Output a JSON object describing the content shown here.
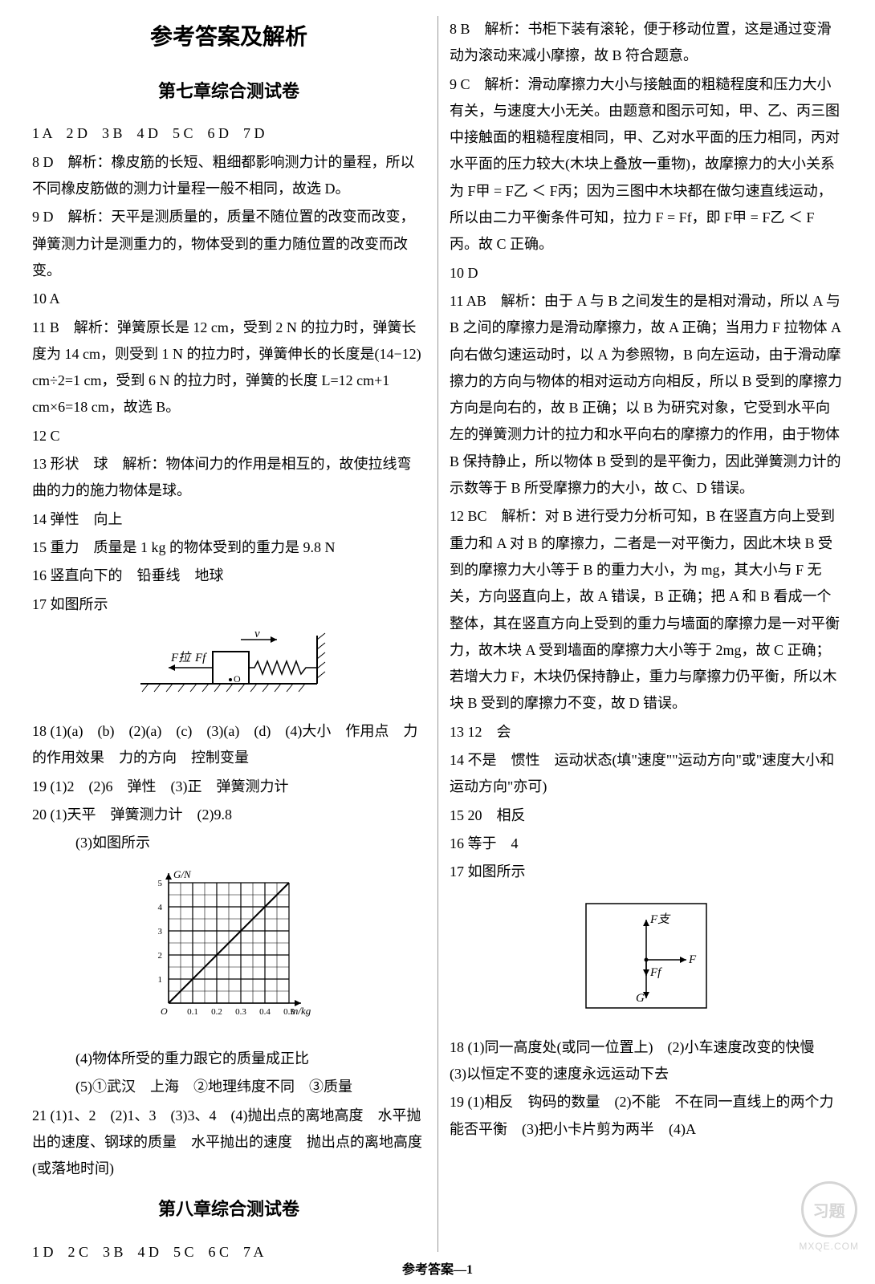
{
  "header": {
    "main_title": "参考答案及解析",
    "chapter7_title": "第七章综合测试卷",
    "chapter8_title": "第八章综合测试卷"
  },
  "footer": "参考答案—1",
  "watermark": {
    "label": "习题",
    "url": "MXQE.COM"
  },
  "left": {
    "q1_7": "1 A　2 D　3 B　4 D　5 C　6 D　7 D",
    "q8": "8 D　解析：橡皮筋的长短、粗细都影响测力计的量程，所以不同橡皮筋做的测力计量程一般不相同，故选 D。",
    "q9": "9 D　解析：天平是测质量的，质量不随位置的改变而改变，弹簧测力计是测重力的，物体受到的重力随位置的改变而改变。",
    "q10": "10 A",
    "q11": "11 B　解析：弹簧原长是 12 cm，受到 2 N 的拉力时，弹簧长度为 14 cm，则受到 1 N 的拉力时，弹簧伸长的长度是(14−12) cm÷2=1 cm，受到 6 N 的拉力时，弹簧的长度 L=12 cm+1 cm×6=18 cm，故选 B。",
    "q12": "12 C",
    "q13": "13 形状　球　解析：物体间力的作用是相互的，故使拉线弯曲的力的施力物体是球。",
    "q14": "14 弹性　向上",
    "q15": "15 重力　质量是 1 kg 的物体受到的重力是 9.8 N",
    "q16": "16 竖直向下的　铅垂线　地球",
    "q17": "17 如图所示",
    "q18": "18 (1)(a)　(b)　(2)(a)　(c)　(3)(a)　(d)　(4)大小　作用点　力的作用效果　力的方向　控制变量",
    "q19": "19 (1)2　(2)6　弹性　(3)正　弹簧测力计",
    "q20a": "20 (1)天平　弹簧测力计　(2)9.8",
    "q20b": "　(3)如图所示",
    "q20c": "　(4)物体所受的重力跟它的质量成正比",
    "q20d": "　(5)①武汉　上海　②地理纬度不同　③质量",
    "q21": "21 (1)1、2　(2)1、3　(3)3、4　(4)抛出点的离地高度　水平抛出的速度、钢球的质量　水平抛出的速度　抛出点的离地高度(或落地时间)",
    "ch8_q1_7": "1 D　2 C　3 B　4 D　5 C　6 C　7 A"
  },
  "right": {
    "q8": "8 B　解析：书柜下装有滚轮，便于移动位置，这是通过变滑动为滚动来减小摩擦，故 B 符合题意。",
    "q9": "9 C　解析：滑动摩擦力大小与接触面的粗糙程度和压力大小有关，与速度大小无关。由题意和图示可知，甲、乙、丙三图中接触面的粗糙程度相同，甲、乙对水平面的压力相同，丙对水平面的压力较大(木块上叠放一重物)，故摩擦力的大小关系为 F甲 = F乙 ＜ F丙；因为三图中木块都在做匀速直线运动，所以由二力平衡条件可知，拉力 F = Ff，即 F甲 = F乙 ＜ F丙。故 C 正确。",
    "q10": "10 D",
    "q11": "11 AB　解析：由于 A 与 B 之间发生的是相对滑动，所以 A 与 B 之间的摩擦力是滑动摩擦力，故 A 正确；当用力 F 拉物体 A 向右做匀速运动时，以 A 为参照物，B 向左运动，由于滑动摩擦力的方向与物体的相对运动方向相反，所以 B 受到的摩擦力方向是向右的，故 B 正确；以 B 为研究对象，它受到水平向左的弹簧测力计的拉力和水平向右的摩擦力的作用，由于物体 B 保持静止，所以物体 B 受到的是平衡力，因此弹簧测力计的示数等于 B 所受摩擦力的大小，故 C、D 错误。",
    "q12": "12 BC　解析：对 B 进行受力分析可知，B 在竖直方向上受到重力和 A 对 B 的摩擦力，二者是一对平衡力，因此木块 B 受到的摩擦力大小等于 B 的重力大小，为 mg，其大小与 F 无关，方向竖直向上，故 A 错误，B 正确；把 A 和 B 看成一个整体，其在竖直方向上受到的重力与墙面的摩擦力是一对平衡力，故木块 A 受到墙面的摩擦力大小等于 2mg，故 C 正确；若增大力 F，木块仍保持静止，重力与摩擦力仍平衡，所以木块 B 受到的摩擦力不变，故 D 错误。",
    "q13": "13 12　会",
    "q14": "14 不是　惯性　运动状态(填\"速度\"\"运动方向\"或\"速度大小和运动方向\"亦可)",
    "q15": "15 20　相反",
    "q16": "16 等于　4",
    "q17": "17 如图所示",
    "q18": "18 (1)同一高度处(或同一位置上)　(2)小车速度改变的快慢　(3)以恒定不变的速度永远运动下去",
    "q19": "19 (1)相反　钩码的数量　(2)不能　不在同一直线上的两个力能否平衡　(3)把小卡片剪为两半　(4)A"
  },
  "figure17": {
    "labels": {
      "F_pull": "F拉",
      "F_f": "Ff",
      "v": "v",
      "O": "O"
    },
    "colors": {
      "stroke": "#000000",
      "fill_block": "#ffffff",
      "hatch": "#000000"
    }
  },
  "figure20_chart": {
    "type": "line",
    "xlabel": "m/kg",
    "ylabel": "G/N",
    "xlim": [
      0,
      0.5
    ],
    "ylim": [
      0,
      5
    ],
    "xticks": [
      "0.1",
      "0.2",
      "0.3",
      "0.4",
      "0.5"
    ],
    "yticks": [
      "1",
      "2",
      "3",
      "4",
      "5"
    ],
    "x_values": [
      0,
      0.1,
      0.2,
      0.3,
      0.4,
      0.5
    ],
    "y_values": [
      0,
      1,
      2,
      3,
      4,
      5
    ],
    "grid_color": "#000000",
    "line_color": "#000000",
    "background_color": "#ffffff",
    "label_fontsize": 12
  },
  "figure_force": {
    "labels": {
      "up": "F支",
      "right": "F",
      "down_short": "Ff",
      "down": "G"
    },
    "box_color": "#000000"
  }
}
